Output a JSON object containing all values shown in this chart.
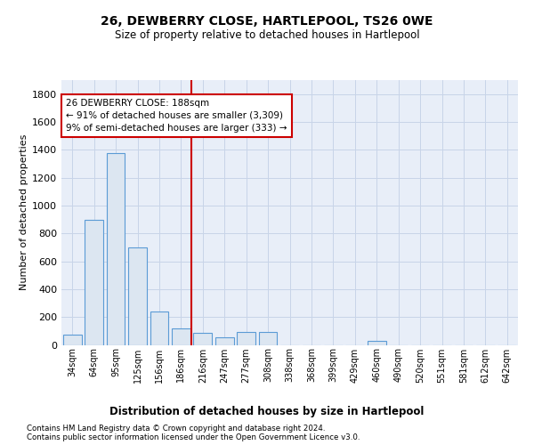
{
  "title1": "26, DEWBERRY CLOSE, HARTLEPOOL, TS26 0WE",
  "title2": "Size of property relative to detached houses in Hartlepool",
  "xlabel": "Distribution of detached houses by size in Hartlepool",
  "ylabel": "Number of detached properties",
  "footnote1": "Contains HM Land Registry data © Crown copyright and database right 2024.",
  "footnote2": "Contains public sector information licensed under the Open Government Licence v3.0.",
  "annotation_line1": "26 DEWBERRY CLOSE: 188sqm",
  "annotation_line2": "← 91% of detached houses are smaller (3,309)",
  "annotation_line3": "9% of semi-detached houses are larger (333) →",
  "property_size": 188,
  "bar_edge_color": "#5b9bd5",
  "bar_face_color": "#dce6f1",
  "vline_color": "#cc0000",
  "annotation_box_color": "#cc0000",
  "grid_color": "#c8d4e8",
  "background_color": "#e8eef8",
  "categories": [
    "34sqm",
    "64sqm",
    "95sqm",
    "125sqm",
    "156sqm",
    "186sqm",
    "216sqm",
    "247sqm",
    "277sqm",
    "308sqm",
    "338sqm",
    "368sqm",
    "399sqm",
    "429sqm",
    "460sqm",
    "490sqm",
    "520sqm",
    "551sqm",
    "581sqm",
    "612sqm",
    "642sqm"
  ],
  "values": [
    75,
    900,
    1375,
    700,
    240,
    120,
    85,
    55,
    95,
    90,
    0,
    0,
    0,
    0,
    30,
    0,
    0,
    0,
    0,
    0,
    0
  ],
  "ylim": [
    0,
    1900
  ],
  "yticks": [
    0,
    200,
    400,
    600,
    800,
    1000,
    1200,
    1400,
    1600,
    1800
  ],
  "n_bins": 21,
  "bin_width": 30
}
